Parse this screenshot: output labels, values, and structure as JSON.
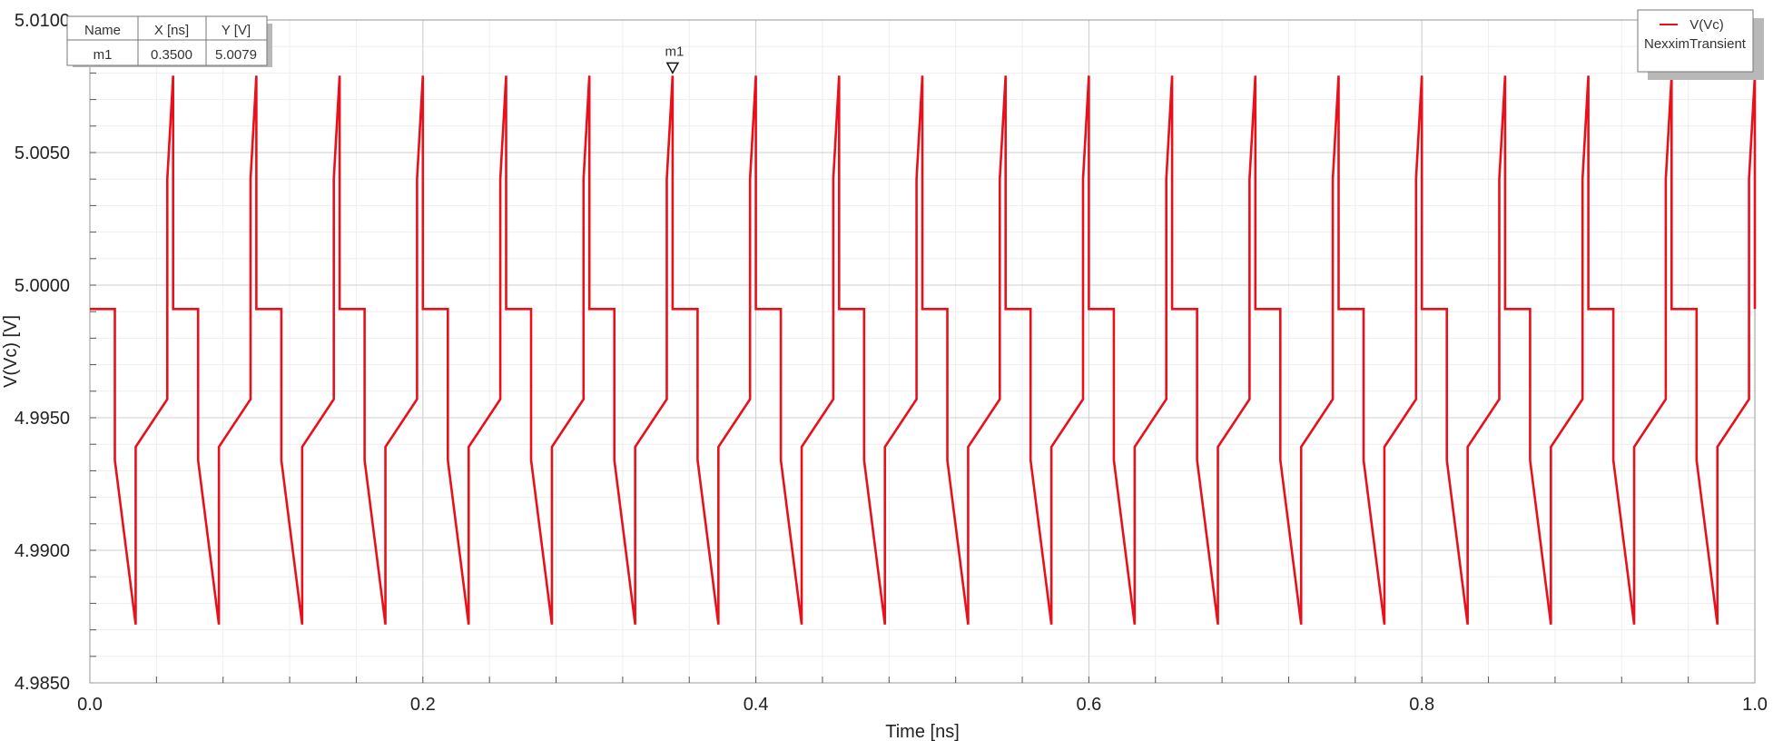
{
  "chart_data": {
    "type": "line",
    "xlabel": "Time [ns]",
    "ylabel": "V(Vc) [V]",
    "xlim": [
      0.0,
      1.0
    ],
    "ylim": [
      4.985,
      5.01
    ],
    "x_ticks": [
      "0.0",
      "0.2",
      "0.4",
      "0.6",
      "0.8",
      "1.0"
    ],
    "y_ticks": [
      "5.0100",
      "5.0050",
      "5.0000",
      "4.9950",
      "4.9900",
      "4.9850"
    ],
    "grid": true,
    "legend_position": "top-right",
    "series": [
      {
        "name": "V(Vc)",
        "sublabel": "NexximTransient",
        "color": "#e8101a",
        "period_ns": 0.05,
        "cycle_pattern": {
          "x_offsets": [
            0.0,
            0.015,
            0.015,
            0.0275,
            0.0275,
            0.0465,
            0.0465,
            0.05,
            0.05
          ],
          "y_values": [
            4.9991,
            4.9991,
            4.9934,
            4.9872,
            4.9939,
            4.9957,
            5.004,
            5.0079,
            4.9991
          ]
        },
        "x_start": 0.0,
        "x_end": 1.0
      }
    ],
    "marker": {
      "name": "m1",
      "x": 0.35,
      "y": 5.0079
    },
    "marker_table": {
      "headers": [
        "Name",
        "X [ns]",
        "Y [V]"
      ],
      "rows": [
        [
          "m1",
          "0.3500",
          "5.0079"
        ]
      ]
    }
  }
}
